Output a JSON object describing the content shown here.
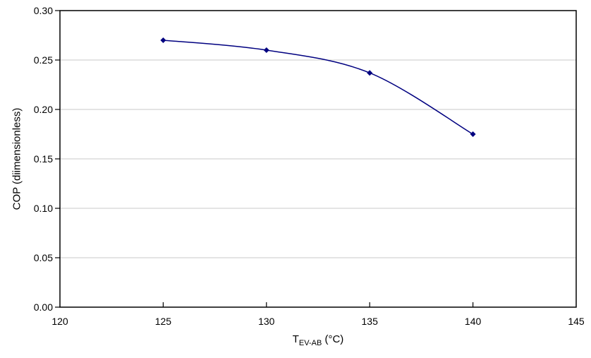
{
  "chart_data": {
    "type": "line",
    "title": "",
    "xlabel": {
      "base": "T",
      "sub": "EV-AB",
      "unit": " (°C)"
    },
    "ylabel": "COP (diimensionless)",
    "xlim": [
      120,
      145
    ],
    "ylim": [
      0,
      0.3
    ],
    "x_ticks": [
      {
        "v": 120,
        "label": "120"
      },
      {
        "v": 125,
        "label": "125"
      },
      {
        "v": 130,
        "label": "130"
      },
      {
        "v": 135,
        "label": "135"
      },
      {
        "v": 140,
        "label": "140"
      },
      {
        "v": 145,
        "label": "145"
      }
    ],
    "y_ticks": [
      {
        "v": 0.0,
        "label": "0.00"
      },
      {
        "v": 0.05,
        "label": "0.05"
      },
      {
        "v": 0.1,
        "label": "0.10"
      },
      {
        "v": 0.15,
        "label": "0.15"
      },
      {
        "v": 0.2,
        "label": "0.20"
      },
      {
        "v": 0.25,
        "label": "0.25"
      },
      {
        "v": 0.3,
        "label": "0.30"
      }
    ],
    "grid": "horizontal-major",
    "legend": "none",
    "series": [
      {
        "name": "COP",
        "marker": "diamond",
        "smooth": true,
        "x": [
          125,
          130,
          135,
          140
        ],
        "y": [
          0.27,
          0.26,
          0.237,
          0.175
        ]
      }
    ],
    "colors": {
      "line": "#000080",
      "marker": "#000080",
      "grid": "#C8C8C8",
      "axis": "#000000",
      "text": "#000000",
      "background": "#FFFFFF"
    }
  }
}
